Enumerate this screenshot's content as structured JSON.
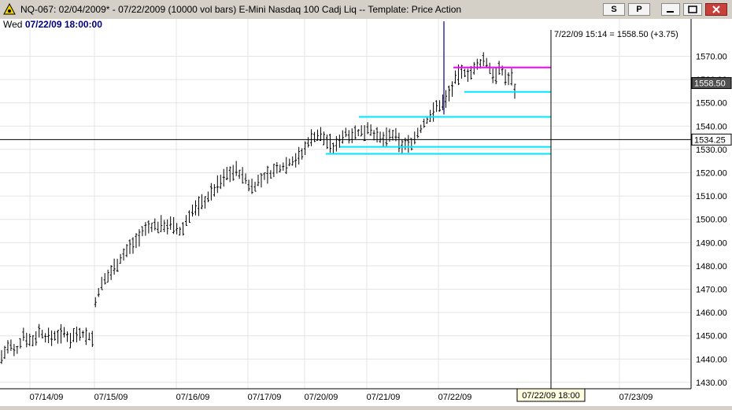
{
  "window": {
    "title": "NQ-067:  02/04/2009* - 07/22/2009  (10000 vol bars)   E-Mini Nasdaq 100 Cadj Liq  --  Template: Price Action",
    "btn_s": "S",
    "btn_p": "P",
    "min_icon": "minimize-icon",
    "max_icon": "maximize-icon",
    "close_icon": "close-icon"
  },
  "infobar": {
    "day": "Wed",
    "datetime": "07/22/09 18:00:00"
  },
  "crosshair": {
    "price_readout": "7/22/09 15:14 = 1558.50 (+3.75)",
    "horizontal_price": 1534.25,
    "horizontal_label": "1534.25",
    "time_label": "07/22/09 18:00"
  },
  "last_price": {
    "value": 1558.5,
    "label": "1558.50"
  },
  "chart_data": {
    "type": "bar",
    "y_axis_ticks": [
      "1570.00",
      "1560.00",
      "1550.00",
      "1540.00",
      "1530.00",
      "1520.00",
      "1510.00",
      "1500.00",
      "1490.00",
      "1480.00",
      "1470.00",
      "1460.00",
      "1450.00",
      "1440.00",
      "1430.00"
    ],
    "x_axis_dates": [
      "07/14/09",
      "07/15/09",
      "07/16/09",
      "07/17/09",
      "07/20/09",
      "07/21/09",
      "07/22/09",
      "07/23/09"
    ],
    "ylim": [
      1426,
      1575
    ],
    "price_path": [
      [
        0,
        1440
      ],
      [
        12,
        1446
      ],
      [
        20,
        1442
      ],
      [
        30,
        1451
      ],
      [
        40,
        1447
      ],
      [
        50,
        1452
      ],
      [
        60,
        1449
      ],
      [
        70,
        1450
      ],
      [
        80,
        1451
      ],
      [
        90,
        1449
      ],
      [
        100,
        1452
      ],
      [
        110,
        1450
      ],
      [
        118,
        1449
      ],
      [
        122,
        1467
      ],
      [
        130,
        1472
      ],
      [
        140,
        1477
      ],
      [
        150,
        1482
      ],
      [
        160,
        1486
      ],
      [
        170,
        1490
      ],
      [
        180,
        1494
      ],
      [
        190,
        1497
      ],
      [
        200,
        1497
      ],
      [
        210,
        1498
      ],
      [
        220,
        1497
      ],
      [
        230,
        1494
      ],
      [
        240,
        1502
      ],
      [
        250,
        1505
      ],
      [
        260,
        1508
      ],
      [
        270,
        1512
      ],
      [
        280,
        1516
      ],
      [
        290,
        1520
      ],
      [
        300,
        1521
      ],
      [
        310,
        1518
      ],
      [
        318,
        1514
      ],
      [
        325,
        1515
      ],
      [
        335,
        1518
      ],
      [
        345,
        1520
      ],
      [
        355,
        1522
      ],
      [
        365,
        1524
      ],
      [
        375,
        1526
      ],
      [
        385,
        1528
      ],
      [
        392,
        1534
      ],
      [
        400,
        1536
      ],
      [
        408,
        1536
      ],
      [
        418,
        1533
      ],
      [
        425,
        1530
      ],
      [
        432,
        1535
      ],
      [
        440,
        1537
      ],
      [
        450,
        1537
      ],
      [
        460,
        1537
      ],
      [
        468,
        1540
      ],
      [
        475,
        1537
      ],
      [
        482,
        1534
      ],
      [
        490,
        1535
      ],
      [
        500,
        1536
      ],
      [
        510,
        1532
      ],
      [
        518,
        1532
      ],
      [
        525,
        1534
      ],
      [
        535,
        1539
      ],
      [
        545,
        1544
      ],
      [
        555,
        1548
      ],
      [
        565,
        1551
      ],
      [
        575,
        1557
      ],
      [
        582,
        1562
      ],
      [
        590,
        1563
      ],
      [
        600,
        1563
      ],
      [
        610,
        1567
      ],
      [
        615,
        1569
      ],
      [
        620,
        1566
      ],
      [
        625,
        1563
      ],
      [
        630,
        1562
      ],
      [
        635,
        1564
      ],
      [
        640,
        1563
      ],
      [
        645,
        1560
      ],
      [
        650,
        1561
      ],
      [
        654,
        1556
      ]
    ],
    "bar_count": 165,
    "bar_amplitude_points": 3.2,
    "horizontal_levels": [
      {
        "price": 1565.2,
        "from": 576,
        "to": 700,
        "color": "#ff00ff"
      },
      {
        "price": 1554.7,
        "from": 590,
        "to": 700,
        "color": "#00e5ff"
      },
      {
        "price": 1544.0,
        "from": 456,
        "to": 700,
        "color": "#00e5ff"
      },
      {
        "price": 1531.1,
        "from": 432,
        "to": 700,
        "color": "#00e5ff"
      },
      {
        "price": 1528.1,
        "from": 414,
        "to": 700,
        "color": "#00e5ff"
      }
    ],
    "spike": {
      "at": 564,
      "high": 1585,
      "low": 1545,
      "color": "#3030a0"
    }
  }
}
